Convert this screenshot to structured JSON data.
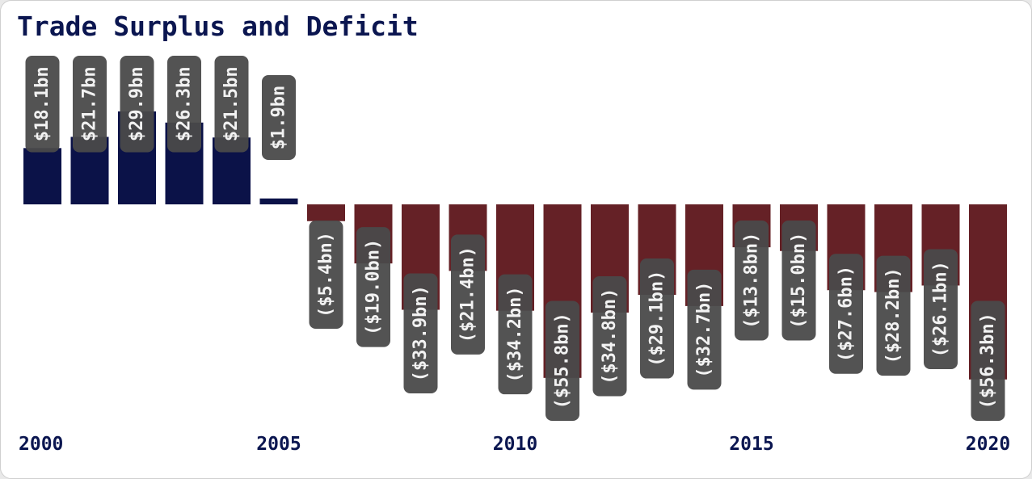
{
  "chart_data": {
    "type": "bar",
    "title": "Trade Surplus and Deficit",
    "categories": [
      "2000",
      "2001",
      "2002",
      "2003",
      "2004",
      "2005",
      "2006",
      "2007",
      "2008",
      "2009",
      "2010",
      "2011",
      "2012",
      "2013",
      "2014",
      "2015",
      "2016",
      "2017",
      "2018",
      "2019",
      "2020"
    ],
    "values": [
      18.1,
      21.7,
      29.9,
      26.3,
      21.5,
      1.9,
      -5.4,
      -19.0,
      -33.9,
      -21.4,
      -34.2,
      -55.8,
      -34.8,
      -29.1,
      -32.7,
      -13.8,
      -15.0,
      -27.6,
      -28.2,
      -26.1,
      -56.3
    ],
    "data_labels": [
      "$18.1bn",
      "$21.7bn",
      "$29.9bn",
      "$26.3bn",
      "$21.5bn",
      "$1.9bn",
      "($5.4bn)",
      "($19.0bn)",
      "($33.9bn)",
      "($21.4bn)",
      "($34.2bn)",
      "($55.8bn)",
      "($34.8bn)",
      "($29.1bn)",
      "($32.7bn)",
      "($13.8bn)",
      "($15.0bn)",
      "($27.6bn)",
      "($28.2bn)",
      "($26.1bn)",
      "($56.3bn)"
    ],
    "x_tick_labels": [
      "2000",
      "2005",
      "2010",
      "2015",
      "2020"
    ],
    "xlabel": "",
    "ylabel": "",
    "grid": false,
    "colors": {
      "surplus": "#0b1248",
      "deficit": "#652126",
      "label_bg": "#4a4a4a",
      "title": "#0b1650"
    }
  }
}
